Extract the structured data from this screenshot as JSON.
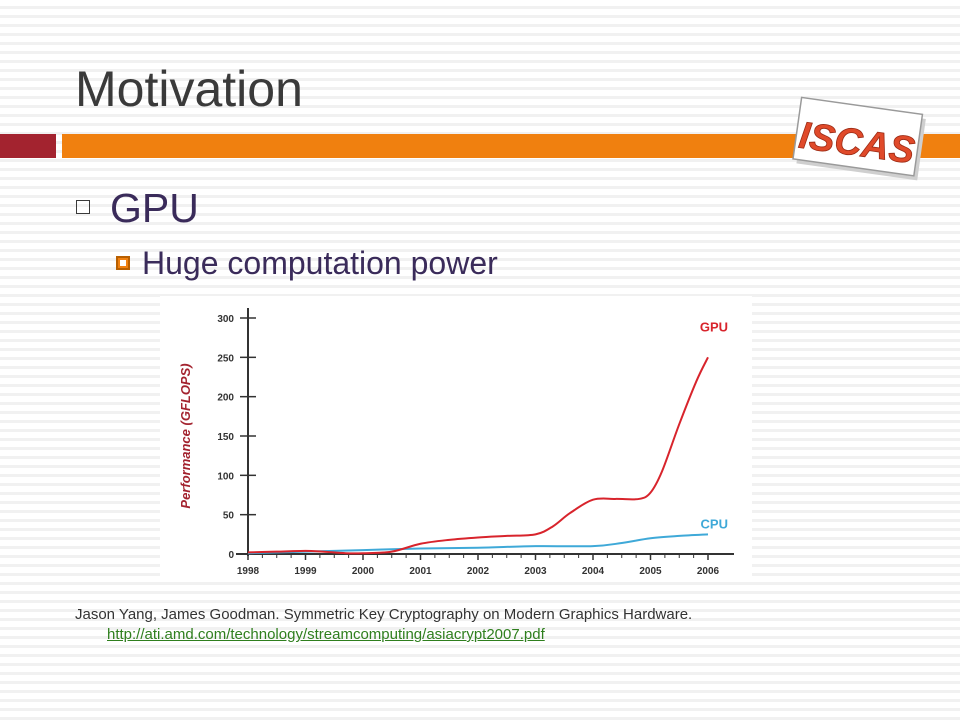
{
  "slide": {
    "title": "Motivation",
    "bullet_level1": "GPU",
    "bullet_level2": "Huge computation power"
  },
  "logo": {
    "text": "ISCAS"
  },
  "reference": {
    "citation": "Jason Yang, James Goodman. Symmetric Key Cryptography on Modern Graphics Hardware.",
    "url": "http://ati.amd.com/technology/streamcomputing/asiacrypt2007.pdf"
  },
  "colors": {
    "accent_red": "#a3232f",
    "accent_orange": "#f0800f",
    "gpu_line": "#d8242c",
    "cpu_line": "#3fa9d8"
  },
  "chart_data": {
    "type": "line",
    "title": "",
    "xlabel": "",
    "ylabel": "Performance (GFLOPS)",
    "x_ticks": [
      "1998",
      "1999",
      "2000",
      "2001",
      "2002",
      "2003",
      "2004",
      "2005",
      "2006"
    ],
    "y_ticks": [
      0,
      50,
      100,
      150,
      200,
      250,
      300
    ],
    "xlim": [
      1998,
      2006
    ],
    "ylim": [
      0,
      300
    ],
    "grid": false,
    "legend": "inline-labels",
    "series": [
      {
        "name": "GPU",
        "color": "#d8242c",
        "x": [
          1998,
          1998.5,
          1999,
          1999.3,
          1999.7,
          2000,
          2000.5,
          2001,
          2001.5,
          2002,
          2002.5,
          2003,
          2003.3,
          2003.6,
          2004,
          2004.4,
          2004.8,
          2005,
          2005.2,
          2005.5,
          2005.8,
          2006
        ],
        "values": [
          2,
          3,
          4,
          3,
          1,
          1,
          3,
          13,
          18,
          21,
          23,
          25,
          35,
          52,
          69,
          70,
          70,
          78,
          105,
          165,
          220,
          250
        ]
      },
      {
        "name": "CPU",
        "color": "#3fa9d8",
        "x": [
          1998,
          1999,
          2000,
          2001,
          2002,
          2003,
          2004,
          2004.5,
          2005,
          2005.5,
          2006
        ],
        "values": [
          1,
          3,
          5,
          7,
          8,
          10,
          10,
          14,
          20,
          23,
          25
        ]
      }
    ]
  }
}
